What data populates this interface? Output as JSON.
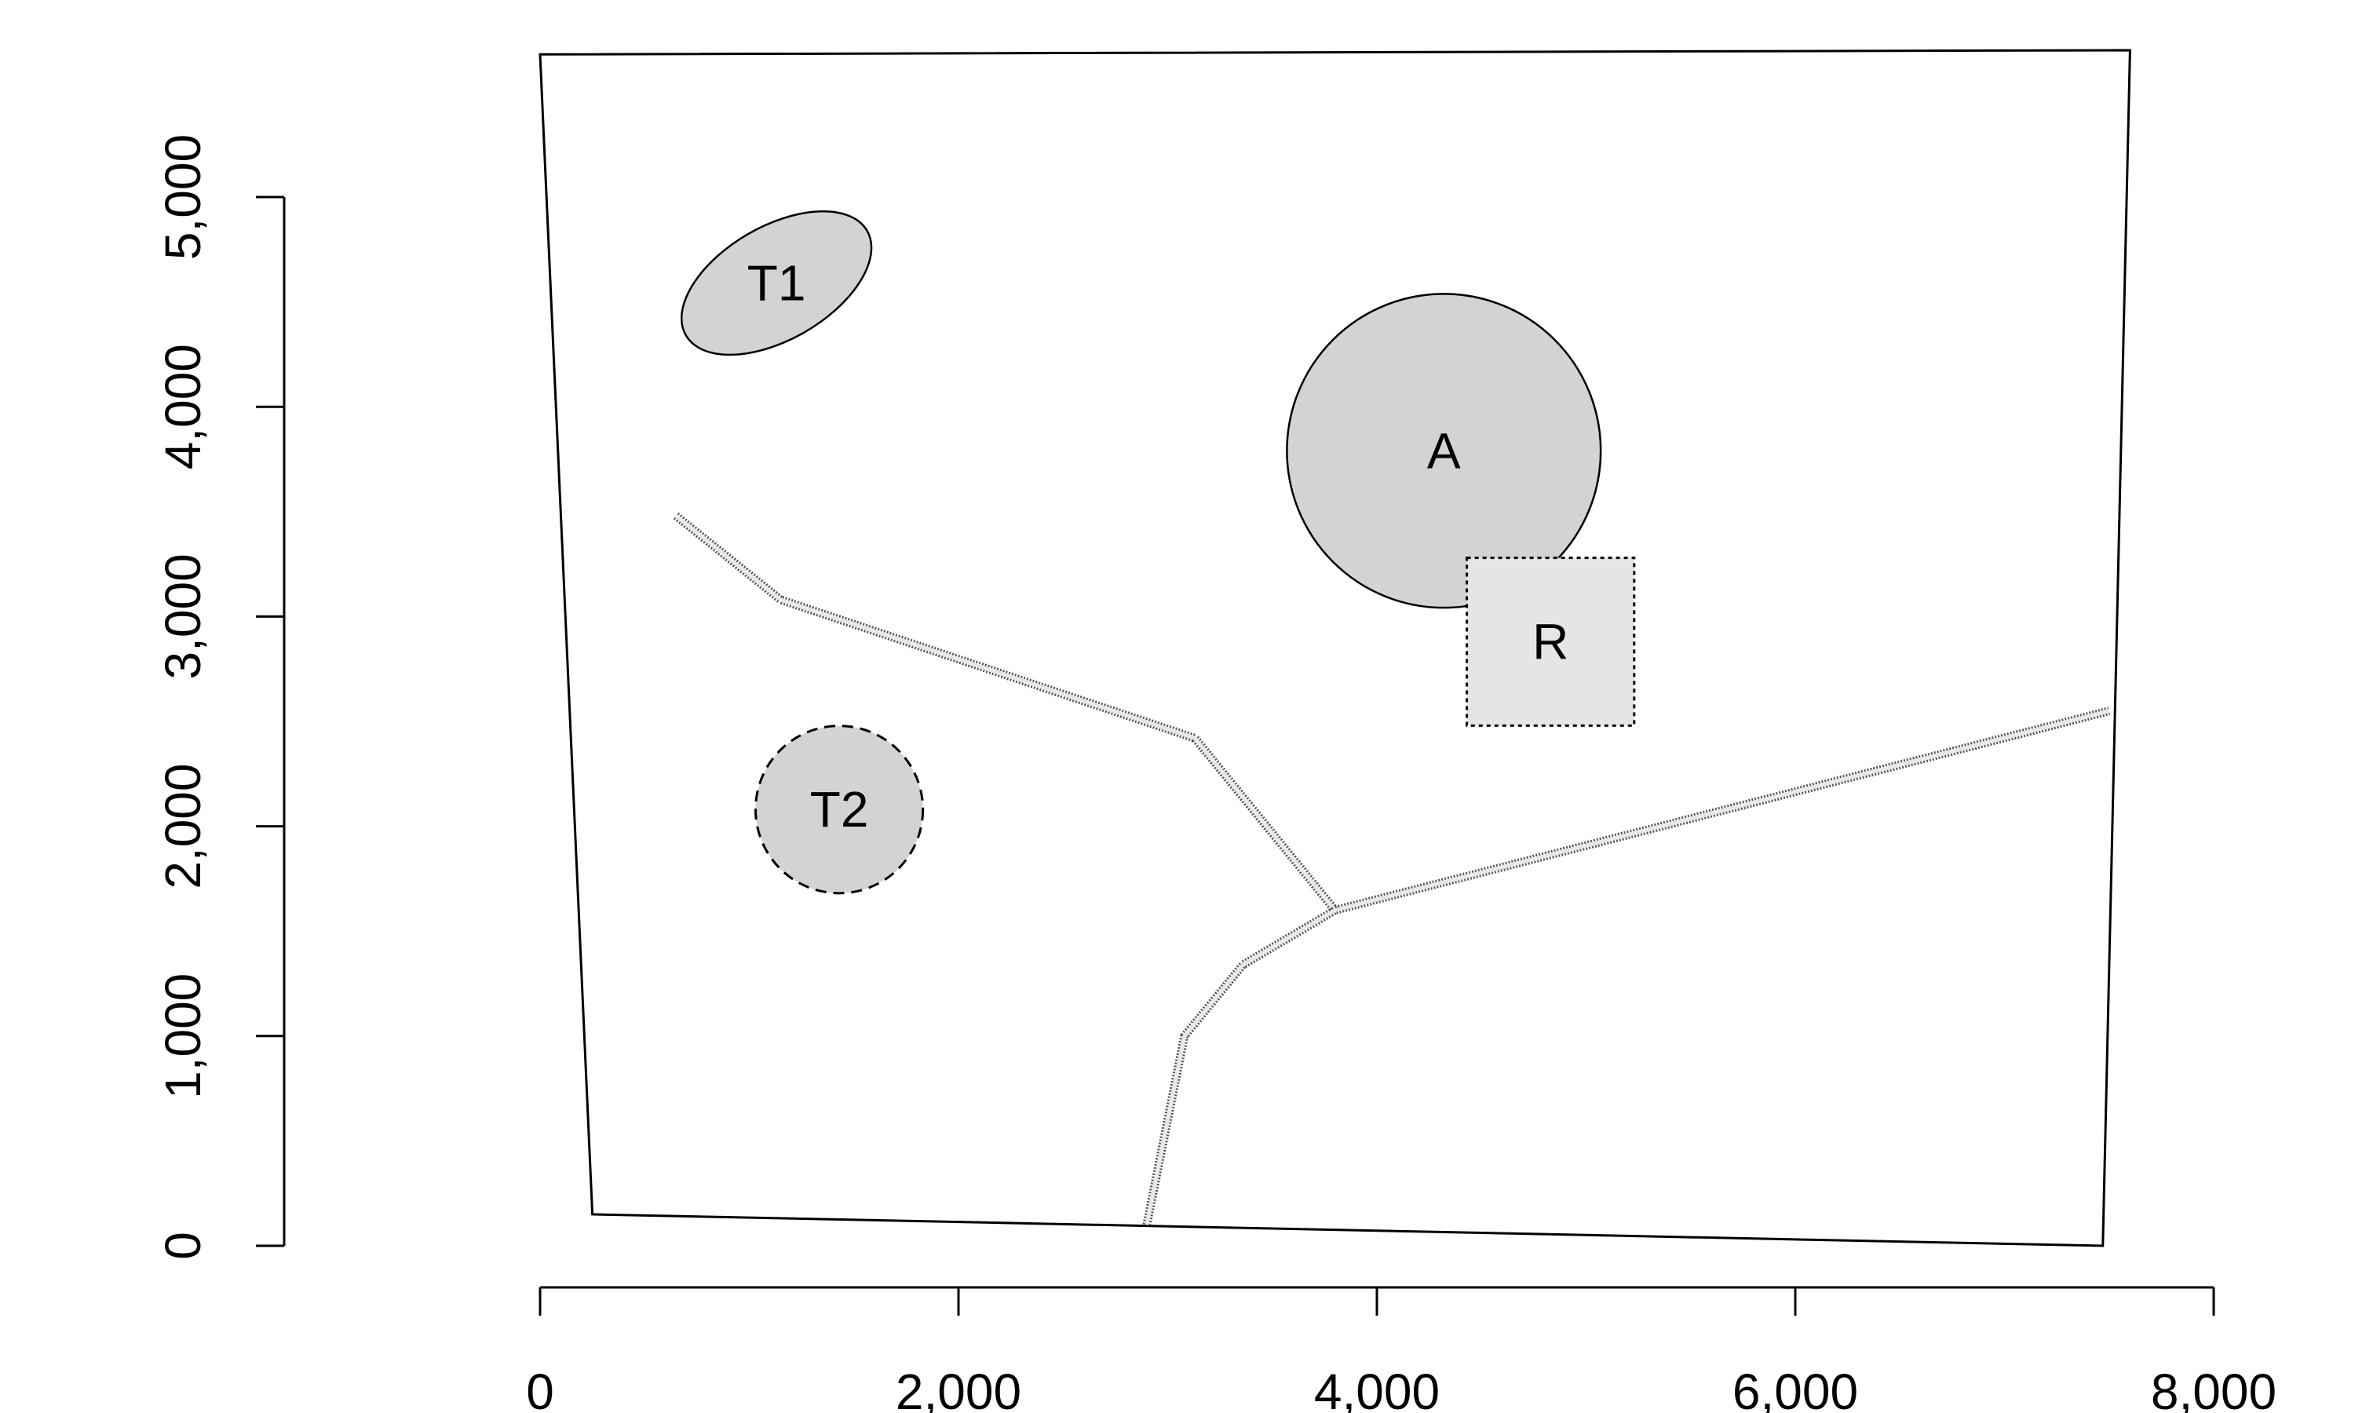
{
  "map": {
    "x_axis": {
      "range": [
        0,
        8000
      ],
      "ticks": [
        0,
        2000,
        4000,
        6000,
        8000
      ],
      "tick_labels": [
        "0",
        "2,000",
        "4,000",
        "6,000",
        "8,000"
      ]
    },
    "y_axis": {
      "range": [
        0,
        5000
      ],
      "ticks": [
        0,
        1000,
        2000,
        3000,
        4000,
        5000
      ],
      "tick_labels": [
        "0",
        "1,000",
        "2,000",
        "3,000",
        "4,000",
        "5,000"
      ]
    },
    "boundary": {
      "points": [
        [
          0,
          5680
        ],
        [
          7600,
          5700
        ],
        [
          7470,
          0
        ],
        [
          250,
          150
        ]
      ]
    },
    "features": [
      {
        "label": "T1",
        "shape": "ellipse",
        "center": [
          1130,
          4590
        ],
        "radii": [
          500,
          270
        ],
        "rotation_deg": -30,
        "style": "solid",
        "fill": "#d3d3d3"
      },
      {
        "label": "A",
        "shape": "circle",
        "center": [
          4320,
          3790
        ],
        "radius": 750,
        "style": "solid",
        "fill": "#d3d3d3"
      },
      {
        "label": "T2",
        "shape": "circle",
        "center": [
          1430,
          2080
        ],
        "radius": 400,
        "style": "dashed",
        "fill": "#d3d3d3"
      },
      {
        "label": "R",
        "shape": "rectangle",
        "corner_min": [
          4430,
          2480
        ],
        "corner_max": [
          5230,
          3280
        ],
        "style": "dotted",
        "fill": "#e5e5e5"
      }
    ],
    "roads": [
      {
        "points": [
          [
            650,
            3480
          ],
          [
            1150,
            3080
          ],
          [
            3130,
            2420
          ],
          [
            3800,
            1600
          ]
        ]
      },
      {
        "points": [
          [
            2900,
            100
          ],
          [
            3080,
            1000
          ],
          [
            3360,
            1340
          ],
          [
            3800,
            1600
          ],
          [
            7500,
            2550
          ]
        ]
      }
    ]
  }
}
